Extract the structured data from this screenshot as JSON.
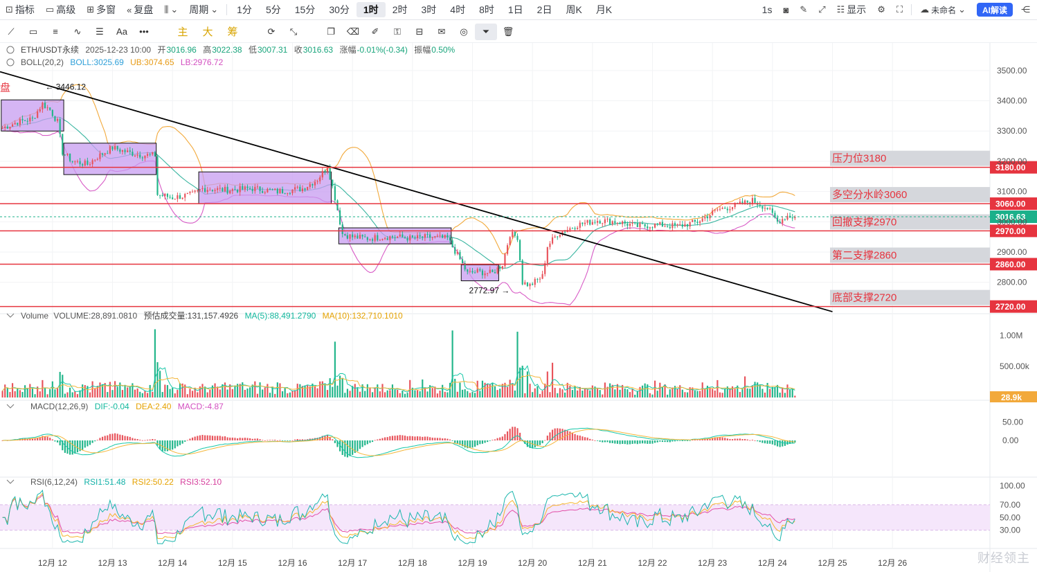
{
  "topbar": {
    "indicators": "指标",
    "advanced": "高级",
    "multi_window": "多窗",
    "replay": "复盘",
    "period": "周期",
    "periods": [
      "1分",
      "5分",
      "15分",
      "30分",
      "1时",
      "2时",
      "3时",
      "4时",
      "8时",
      "1日",
      "2日",
      "周K",
      "月K"
    ],
    "active_period": "1时",
    "refresh": "1s",
    "display": "显示",
    "layout_name": "未命名",
    "ai_label": "AI解读"
  },
  "toolbar2": {
    "text_tool": "Aa",
    "more_tool": "•••",
    "main_label": "主",
    "large_label": "大",
    "chip_label": "筹"
  },
  "info": {
    "symbol": "ETH/USDT永续",
    "datetime": "2025-12-23 10:00",
    "open_label": "开",
    "open": "3016.96",
    "high_label": "高",
    "high": "3022.38",
    "low_label": "低",
    "low": "3007.31",
    "close_label": "收",
    "close": "3016.63",
    "change_label": "涨幅",
    "change": "-0.01%(-0.34)",
    "amp_label": "振幅",
    "amp": "0.50%"
  },
  "boll": {
    "name": "BOLL(20,2)",
    "mid": "BOLL:3025.69",
    "ub": "UB:3074.65",
    "lb": "LB:2976.72"
  },
  "volume_info": {
    "name": "Volume",
    "vol": "VOLUME:28,891.0810",
    "pred": "预估成交量:131,157.4926",
    "ma5": "MA(5):88,491.2790",
    "ma10": "MA(10):132,710.1010"
  },
  "macd_info": {
    "name": "MACD(12,26,9)",
    "dif": "DIF:-0.04",
    "dea": "DEA:2.40",
    "macd": "MACD:-4.87"
  },
  "rsi_info": {
    "name": "RSI(6,12,24)",
    "rsi1": "RSI1:51.48",
    "rsi2": "RSI2:50.22",
    "rsi3": "RSI3:52.10"
  },
  "watermark": "财经领主",
  "colors": {
    "up": "#e8535b",
    "down": "#21b58a",
    "level": "#e6343f",
    "boll_mid": "#7fb6e8",
    "boll_ub": "#f2a93b",
    "boll_lb": "#d85bc6",
    "box": "#c79cf0",
    "trend": "#000000",
    "price_tag": "#1bb08a",
    "vol_tag": "#f2a93b",
    "ma5": "#17c7a8",
    "ma10": "#f4b63a",
    "rsi1": "#1bb6ad",
    "rsi2": "#f5b52d",
    "rsi3": "#e24fa7",
    "rsi_band": "#f5e6fb"
  },
  "chart_data": {
    "type": "candlestick",
    "x_ticks": [
      "12月 12",
      "12月 13",
      "12月 14",
      "12月 15",
      "12月 16",
      "12月 17",
      "12月 18",
      "12月 19",
      "12月 20",
      "12月 21",
      "12月 22",
      "12月 23",
      "12月 24",
      "12月 25",
      "12月 26"
    ],
    "x_tick_index": [
      20,
      44,
      68,
      92,
      116,
      140,
      164,
      188,
      212,
      236,
      260,
      284,
      308,
      332,
      356
    ],
    "price_axis": {
      "ylim": [
        2710,
        3550
      ],
      "ticks": [
        2800,
        2900,
        3000,
        3100,
        3200,
        3300,
        3400,
        3500
      ],
      "tick_labels": [
        "2800.00",
        "2900.00",
        "3000.00",
        "3100.00",
        "3200.00",
        "3300.00",
        "3400.00",
        "3500.00"
      ]
    },
    "current_price": "3016.63",
    "levels": [
      {
        "value": 3180,
        "label": "压力位3180",
        "tag": "3180.00"
      },
      {
        "value": 3060,
        "label": "多空分水岭3060",
        "tag": "3060.00"
      },
      {
        "value": 2970,
        "label": "回撤支撑2970",
        "tag": "2970.00"
      },
      {
        "value": 2860,
        "label": "第二支撑2860",
        "tag": "2860.00"
      },
      {
        "value": 2720,
        "label": "底部支撑2720",
        "tag": "2720.00"
      }
    ],
    "annotations": [
      {
        "text": "← 3446.12",
        "index": 16,
        "value": 3446.12
      },
      {
        "text": "2772.97 →",
        "index": 204,
        "value": 2772.97
      }
    ],
    "label_fragment": "盘",
    "consolidation_boxes": [
      {
        "from": 0,
        "to": 24,
        "low": 3300,
        "high": 3403
      },
      {
        "from": 25,
        "to": 61,
        "low": 3156,
        "high": 3260
      },
      {
        "from": 79,
        "to": 131,
        "low": 3060,
        "high": 3165
      },
      {
        "from": 135,
        "to": 179,
        "low": 2927,
        "high": 2980
      },
      {
        "from": 184,
        "to": 198,
        "low": 2805,
        "high": 2858
      }
    ],
    "trendline": {
      "from": {
        "index": -1,
        "value": 3496
      },
      "to": {
        "index": 332,
        "value": 2703
      }
    },
    "price_anchors": [
      [
        0,
        3310
      ],
      [
        6,
        3330
      ],
      [
        12,
        3340
      ],
      [
        16,
        3390
      ],
      [
        19,
        3370
      ],
      [
        22,
        3330
      ],
      [
        24,
        3230
      ],
      [
        28,
        3200
      ],
      [
        34,
        3190
      ],
      [
        38,
        3215
      ],
      [
        44,
        3245
      ],
      [
        50,
        3230
      ],
      [
        56,
        3220
      ],
      [
        61,
        3220
      ],
      [
        62,
        3090
      ],
      [
        68,
        3080
      ],
      [
        76,
        3090
      ],
      [
        80,
        3110
      ],
      [
        90,
        3105
      ],
      [
        100,
        3110
      ],
      [
        110,
        3100
      ],
      [
        120,
        3110
      ],
      [
        126,
        3140
      ],
      [
        130,
        3185
      ],
      [
        133,
        3080
      ],
      [
        136,
        2960
      ],
      [
        140,
        2950
      ],
      [
        146,
        2945
      ],
      [
        152,
        2950
      ],
      [
        158,
        2950
      ],
      [
        164,
        2945
      ],
      [
        170,
        2950
      ],
      [
        178,
        2945
      ],
      [
        182,
        2890
      ],
      [
        186,
        2830
      ],
      [
        190,
        2835
      ],
      [
        196,
        2830
      ],
      [
        200,
        2860
      ],
      [
        203,
        2960
      ],
      [
        206,
        2950
      ],
      [
        208,
        2800
      ],
      [
        211,
        2790
      ],
      [
        216,
        2820
      ],
      [
        218,
        2920
      ],
      [
        222,
        2960
      ],
      [
        230,
        2990
      ],
      [
        238,
        3005
      ],
      [
        246,
        3000
      ],
      [
        254,
        2985
      ],
      [
        262,
        2990
      ],
      [
        270,
        2985
      ],
      [
        278,
        3000
      ],
      [
        286,
        3040
      ],
      [
        294,
        3055
      ],
      [
        300,
        3070
      ],
      [
        306,
        3045
      ],
      [
        310,
        3000
      ],
      [
        314,
        3020
      ],
      [
        317,
        3016
      ]
    ],
    "last_index": 317,
    "index_range": [
      -1,
      395
    ],
    "volume_axis": {
      "ylim": [
        0,
        1250000
      ],
      "ticks": [
        500000,
        1000000
      ],
      "tick_labels": [
        "500.00k",
        "1.00M"
      ],
      "current_tag": "28.9k"
    },
    "volume_spikes": [
      [
        20,
        260000
      ],
      [
        61,
        1100000
      ],
      [
        63,
        430000
      ],
      [
        94,
        220000
      ],
      [
        133,
        900000
      ],
      [
        168,
        290000
      ],
      [
        180,
        1080000
      ],
      [
        190,
        270000
      ],
      [
        206,
        1060000
      ],
      [
        210,
        420000
      ],
      [
        220,
        560000
      ],
      [
        286,
        280000
      ],
      [
        297,
        340000
      ]
    ],
    "macd_axis": {
      "ylim": [
        -90,
        90
      ],
      "ticks": [
        0,
        50
      ],
      "tick_labels": [
        "0.00",
        "50.00"
      ]
    },
    "rsi_axis": {
      "ylim": [
        10,
        108
      ],
      "ticks": [
        30,
        50,
        70,
        100
      ],
      "tick_labels": [
        "30.00",
        "50.00",
        "70.00",
        "100.00"
      ],
      "band": [
        30,
        70
      ]
    }
  }
}
